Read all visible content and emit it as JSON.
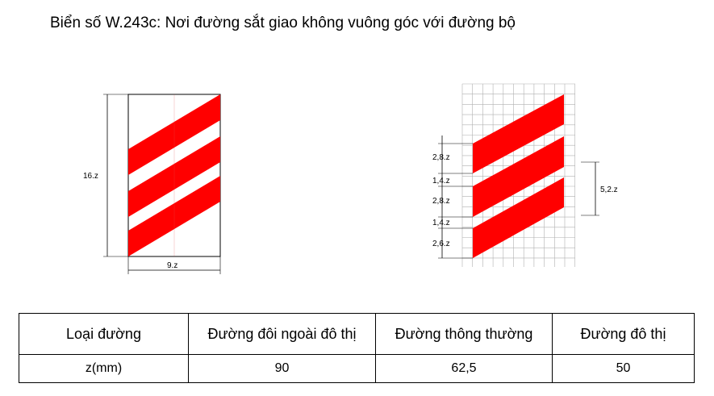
{
  "title": "Biển số W.243c: Nơi đường sắt giao không vuông góc với đường bộ",
  "colors": {
    "stripe": "#ff0000",
    "grid": "#b0b0b0",
    "line": "#000000"
  },
  "sign_left": {
    "height_label": "16.z",
    "width_label": "9.z"
  },
  "sign_right": {
    "left_dims": [
      "2,8.z",
      "1,4.z",
      "2,8.z",
      "1,4.z",
      "2,6.z"
    ],
    "right_dim": "5,2.z"
  },
  "table": {
    "headers": [
      "Loại đường",
      "Đường đôi ngoài đô thị",
      "Đường thông thường",
      "Đường đô thị"
    ],
    "row": [
      "z(mm)",
      "90",
      "62,5",
      "50"
    ]
  }
}
